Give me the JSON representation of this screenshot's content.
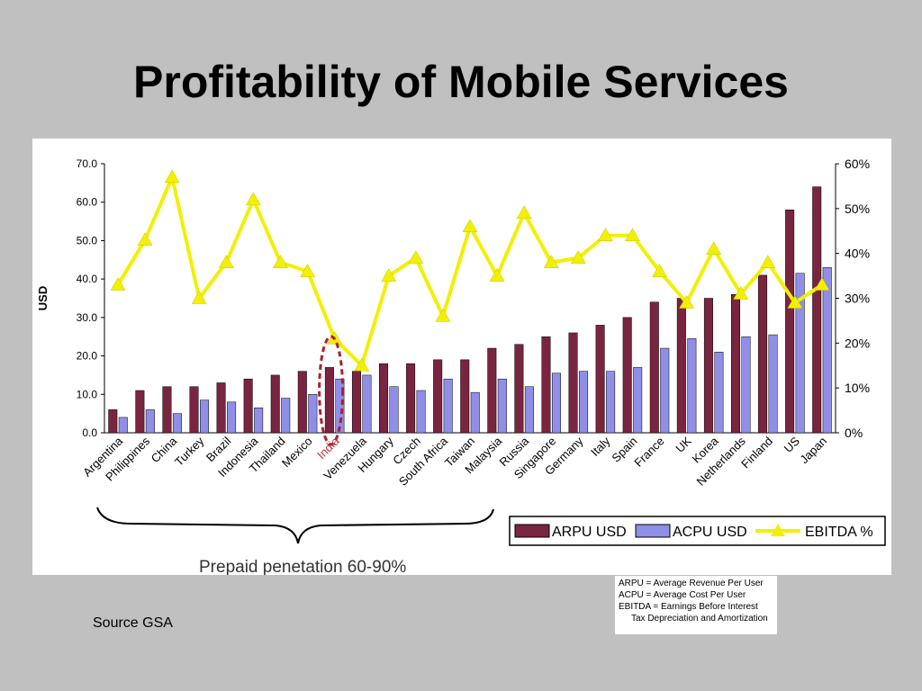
{
  "slide": {
    "title": "Profitability of Mobile Services",
    "source": "Source GSA",
    "glossary": [
      "ARPU   = Average Revenue Per User",
      "ACPU   = Average Cost Per User",
      "EBITDA = Earnings Before Interest",
      "Tax Depreciation and Amortization"
    ]
  },
  "chart_data": {
    "type": "bar",
    "title": "",
    "ylabel": "USD",
    "y2label": "",
    "ylim": [
      0,
      70
    ],
    "yticks": [
      "0.0",
      "10.0",
      "20.0",
      "30.0",
      "40.0",
      "50.0",
      "60.0",
      "70.0"
    ],
    "y2lim": [
      0,
      60
    ],
    "y2ticks": [
      "0%",
      "10%",
      "20%",
      "30%",
      "40%",
      "50%",
      "60%"
    ],
    "grid": false,
    "legend_position": "bottom-right",
    "categories": [
      "Argentina",
      "Philippines",
      "China",
      "Turkey",
      "Brazil",
      "Indonesia",
      "Thailand",
      "Mexico",
      "India",
      "Venezuela",
      "Hungary",
      "Czech",
      "South Africa",
      "Taiwan",
      "Malaysia",
      "Russia",
      "Singapore",
      "Germany",
      "Italy",
      "Spain",
      "France",
      "UK",
      "Korea",
      "Netherlands",
      "Finland",
      "US",
      "Japan"
    ],
    "highlight_category": "India",
    "series": [
      {
        "name": "ARPU USD",
        "kind": "bar",
        "axis": "left",
        "color": "#7a2540",
        "values": [
          6,
          11,
          12,
          12,
          13,
          14,
          15,
          16,
          17,
          16,
          18,
          18,
          19,
          19,
          22,
          23,
          25,
          26,
          28,
          30,
          34,
          35,
          35,
          36,
          41,
          58,
          64
        ]
      },
      {
        "name": "ACPU USD",
        "kind": "bar",
        "axis": "left",
        "color": "#8f8fe8",
        "values": [
          4,
          6,
          5,
          8.5,
          8,
          6.5,
          9,
          10,
          14,
          15,
          12,
          11,
          14,
          10.5,
          14,
          12,
          15.5,
          16,
          16,
          17,
          22,
          24.5,
          21,
          25,
          25.5,
          41.5,
          43
        ]
      },
      {
        "name": "EBITDA %",
        "kind": "line",
        "axis": "right",
        "color": "#f2f000",
        "values": [
          33,
          43,
          57,
          30,
          38,
          52,
          38,
          36,
          21,
          15,
          35,
          39,
          26,
          46,
          35,
          49,
          38,
          39,
          44,
          44,
          36,
          29,
          41,
          31,
          38,
          29,
          33
        ]
      }
    ],
    "annotation": "Prepaid penetation 60-90%"
  }
}
